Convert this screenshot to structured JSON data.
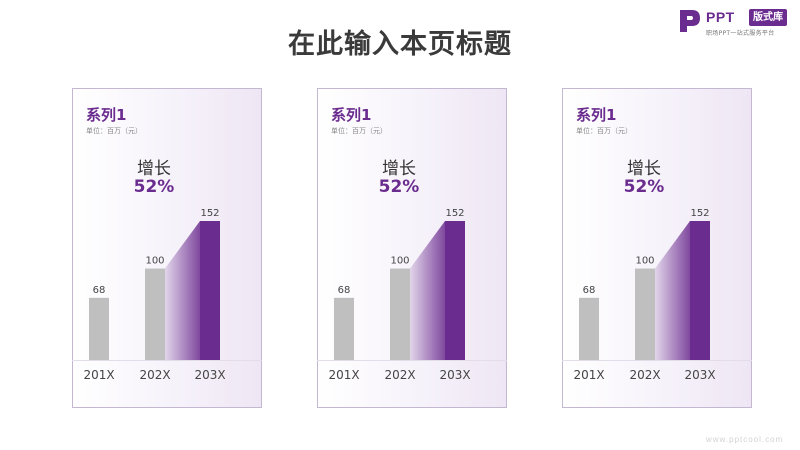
{
  "page": {
    "title": "在此输入本页标题"
  },
  "logo": {
    "brand": "PPT",
    "badge": "版式库",
    "tagline": "职场PPT一站式服务平台"
  },
  "footer": {
    "url": "www.pptcool.com"
  },
  "colors": {
    "accent": "#6b2c8f",
    "bar_gray": "#bfbfbf",
    "title": "#3a3a3a"
  },
  "chart_data": [
    {
      "type": "bar",
      "title": "系列1",
      "subtitle": "单位：百万（元）",
      "categories": [
        "201X",
        "202X",
        "203X"
      ],
      "values": [
        68,
        100,
        152
      ],
      "ylim": [
        0,
        152
      ],
      "highlight_category": "203X",
      "annotation": {
        "label": "增长",
        "value": "52%"
      },
      "grid": false
    },
    {
      "type": "bar",
      "title": "系列1",
      "subtitle": "单位：百万（元）",
      "categories": [
        "201X",
        "202X",
        "203X"
      ],
      "values": [
        68,
        100,
        152
      ],
      "ylim": [
        0,
        152
      ],
      "highlight_category": "203X",
      "annotation": {
        "label": "增长",
        "value": "52%"
      },
      "grid": false
    },
    {
      "type": "bar",
      "title": "系列1",
      "subtitle": "单位：百万（元）",
      "categories": [
        "201X",
        "202X",
        "203X"
      ],
      "values": [
        68,
        100,
        152
      ],
      "ylim": [
        0,
        152
      ],
      "highlight_category": "203X",
      "annotation": {
        "label": "增长",
        "value": "52%"
      },
      "grid": false
    }
  ]
}
